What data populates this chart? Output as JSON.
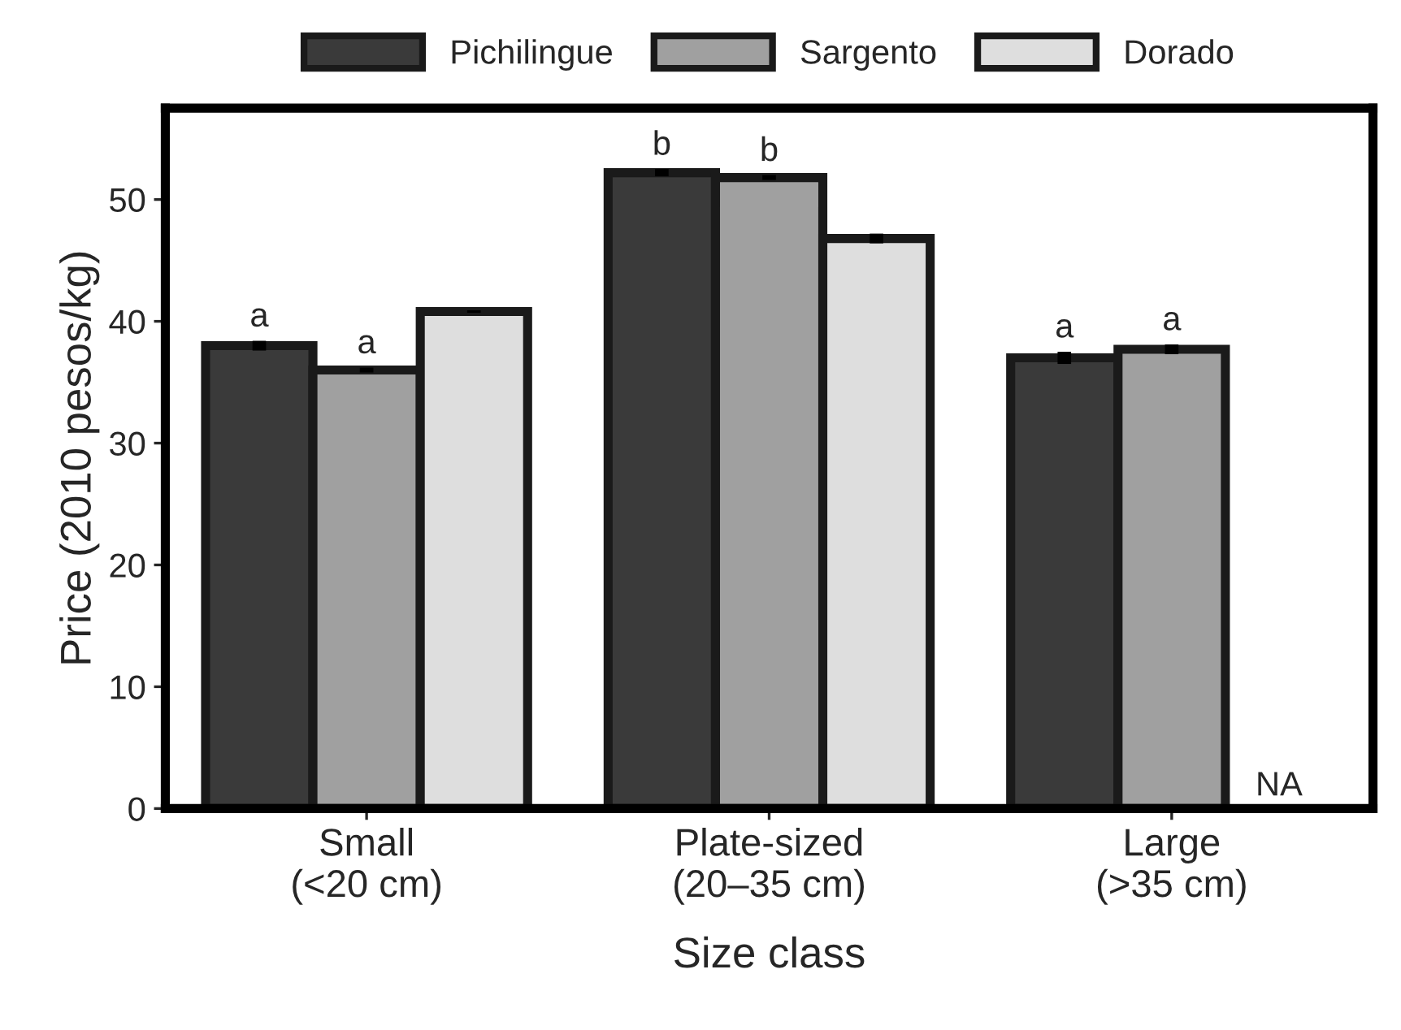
{
  "chart_data": {
    "type": "bar",
    "xlabel": "Size class",
    "ylabel": "Price (2010 pesos/kg)",
    "categories": [
      "Small\n(<20 cm)",
      "Plate-sized\n(20–35 cm)",
      "Large\n(>35 cm)"
    ],
    "series": [
      {
        "name": "Pichilingue",
        "color": "#3a3a3a",
        "values": [
          38.0,
          52.2,
          37.0
        ],
        "errors": [
          0.4,
          0.3,
          0.5
        ],
        "value_labels": [
          "a",
          "b",
          "a"
        ]
      },
      {
        "name": "Sargento",
        "color": "#a0a0a0",
        "values": [
          36.0,
          51.8,
          37.7
        ],
        "errors": [
          0.2,
          0.2,
          0.4
        ],
        "value_labels": [
          "a",
          "b",
          "a"
        ]
      },
      {
        "name": "Dorado",
        "color": "#dedede",
        "values": [
          40.8,
          46.8,
          null
        ],
        "errors": [
          0.1,
          0.4,
          null
        ],
        "value_labels": [
          null,
          null,
          "NA"
        ]
      }
    ],
    "ylim": [
      0,
      57.5
    ],
    "yticks": [
      0,
      10,
      20,
      30,
      40,
      50
    ],
    "grid": false,
    "legend": "top"
  }
}
